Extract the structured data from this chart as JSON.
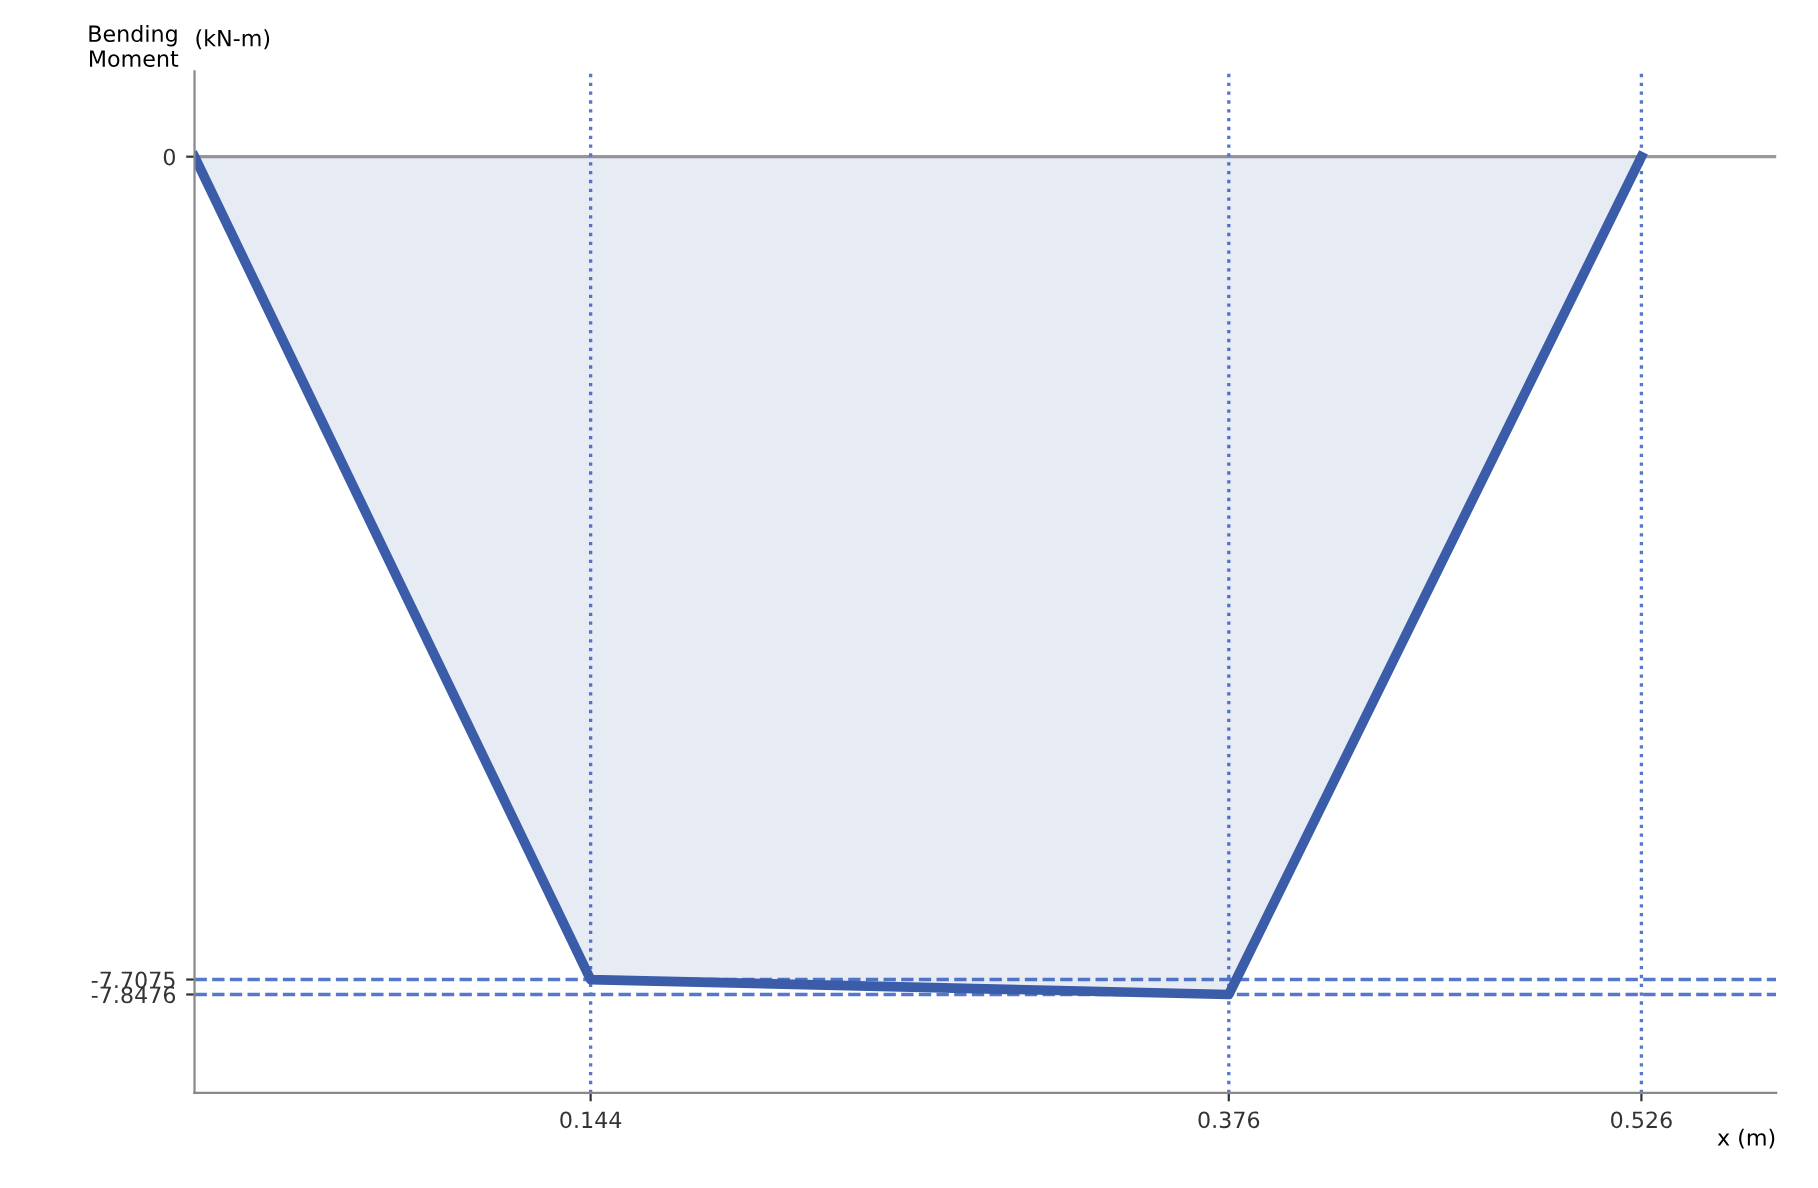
{
  "chart_data": {
    "type": "area",
    "ylabel": "Bending Moment",
    "y2label": "(kN-m)",
    "xlabel": "x (m)",
    "x": [
      0,
      0.144,
      0.376,
      0.526
    ],
    "series": [
      {
        "color": "#3b5ca8",
        "values": [
          0,
          -7.7075,
          -7.8476,
          0
        ]
      }
    ],
    "xlim": [
      0,
      0.575
    ],
    "ylim": [
      -8.77,
      0.8
    ],
    "xticks": [
      0.144,
      0.376,
      0.526
    ],
    "yticks": [
      0,
      -7.7075,
      -7.8476
    ],
    "ref_lines": [
      {
        "axis": "y",
        "value": 0,
        "color": "#999999",
        "line_style": "solid"
      },
      {
        "axis": "y",
        "value": -7.7075,
        "color": "#5577cc",
        "line_style": "dashed"
      },
      {
        "axis": "y",
        "value": -7.8476,
        "color": "#5577cc",
        "line_style": "dashed"
      },
      {
        "axis": "x",
        "value": 0.144,
        "color": "#5577cc",
        "line_style": "dotted"
      },
      {
        "axis": "x",
        "value": 0.376,
        "color": "#5577cc",
        "line_style": "dotted"
      },
      {
        "axis": "x",
        "value": 0.526,
        "color": "#5577cc",
        "line_style": "dotted"
      }
    ],
    "grid": false,
    "legend": false,
    "line_style": "solid",
    "marker": "none"
  }
}
